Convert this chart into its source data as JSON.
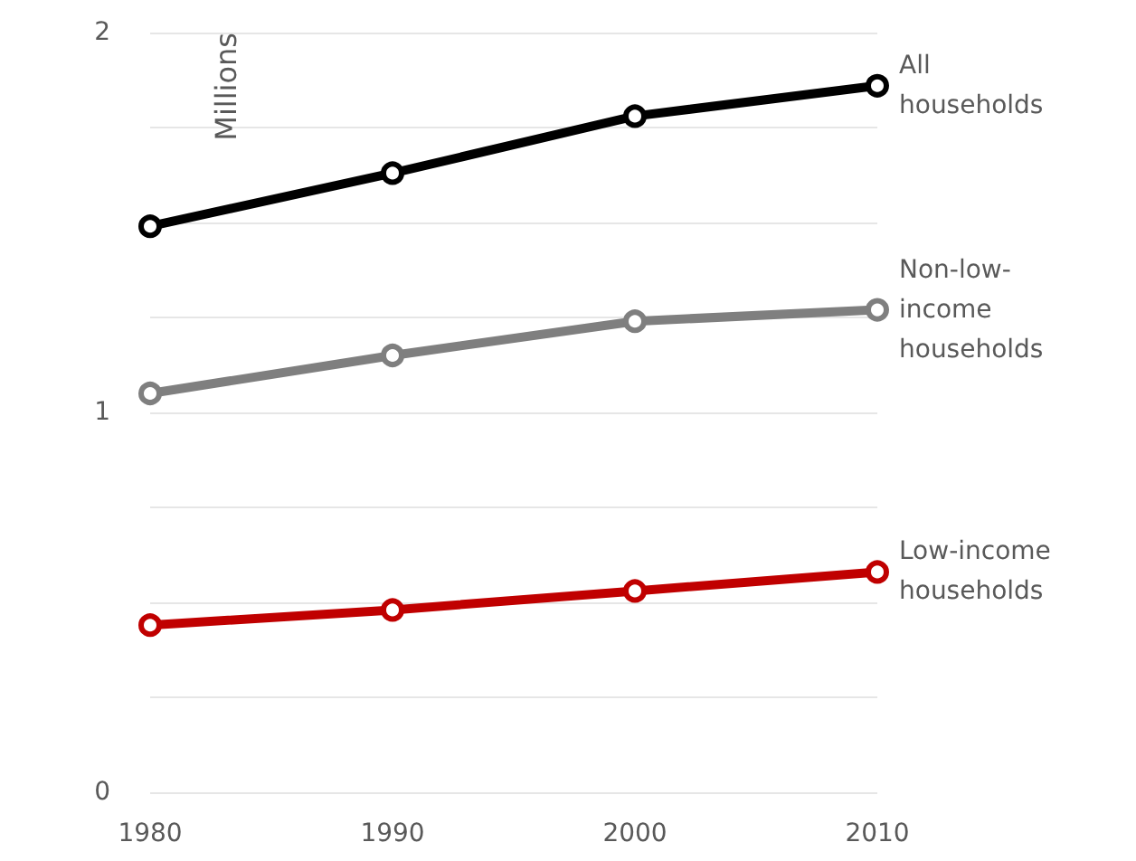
{
  "chart_data": {
    "type": "line",
    "ylabel": "Millions",
    "x": [
      1980,
      1990,
      2000,
      2010
    ],
    "series": [
      {
        "name": "All households",
        "color": "#000000",
        "values": [
          1.49,
          1.63,
          1.78,
          1.86
        ]
      },
      {
        "name": "Non-low-income households",
        "color": "#7f7f7f",
        "values": [
          1.05,
          1.15,
          1.24,
          1.27
        ]
      },
      {
        "name": "Low-income households",
        "color": "#c00000",
        "values": [
          0.44,
          0.48,
          0.53,
          0.58
        ]
      }
    ],
    "xlim": [
      1980,
      2010
    ],
    "xticks": [
      1980,
      1990,
      2000,
      2010
    ],
    "ylim": [
      0,
      2
    ],
    "yticks": [
      0,
      {
        "value": 0.25,
        "label": null
      },
      {
        "value": 0.5,
        "label": null
      },
      {
        "value": 0.75,
        "label": null
      },
      1,
      {
        "value": 1.25,
        "label": null
      },
      {
        "value": 1.5,
        "label": null
      },
      {
        "value": 1.75,
        "label": null
      },
      2
    ],
    "grid": "y",
    "legend": false,
    "marker": "circle",
    "line_style": "solid"
  }
}
